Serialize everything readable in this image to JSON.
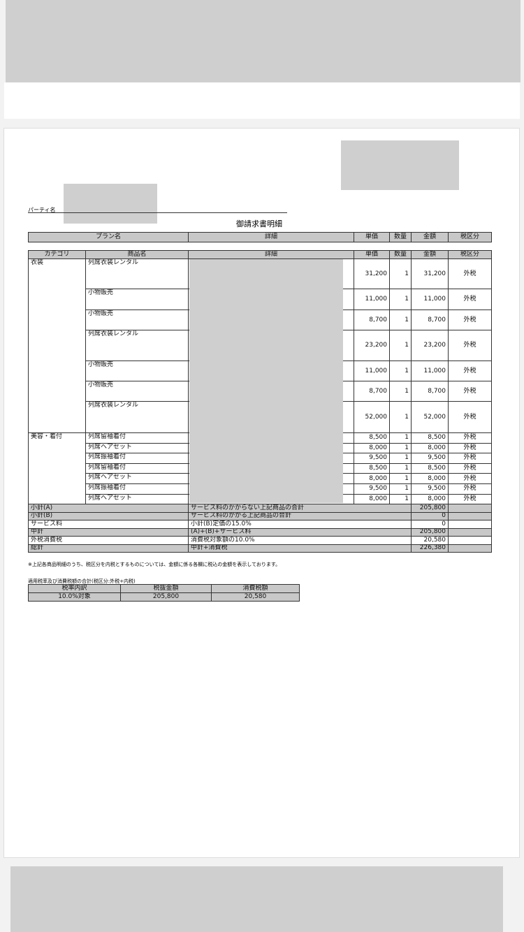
{
  "party_label": "パーティ名",
  "title": "御請求書明細",
  "plan_header": [
    "プラン名",
    "詳細",
    "単価",
    "数量",
    "金額",
    "税区分"
  ],
  "items_header": [
    "カテゴリ",
    "商品名",
    "詳細",
    "単価",
    "数量",
    "金額",
    "税区分"
  ],
  "groups": [
    {
      "category": "衣装",
      "rows": [
        {
          "name": "列席衣装レンタル",
          "unit_price": "31,200",
          "qty": "1",
          "amount": "31,200",
          "tax": "外税"
        },
        {
          "name": "小物販売",
          "unit_price": "11,000",
          "qty": "1",
          "amount": "11,000",
          "tax": "外税"
        },
        {
          "name": "小物販売",
          "unit_price": "8,700",
          "qty": "1",
          "amount": "8,700",
          "tax": "外税"
        },
        {
          "name": "列席衣装レンタル",
          "unit_price": "23,200",
          "qty": "1",
          "amount": "23,200",
          "tax": "外税"
        },
        {
          "name": "小物販売",
          "unit_price": "11,000",
          "qty": "1",
          "amount": "11,000",
          "tax": "外税"
        },
        {
          "name": "小物販売",
          "unit_price": "8,700",
          "qty": "1",
          "amount": "8,700",
          "tax": "外税"
        },
        {
          "name": "列席衣装レンタル",
          "unit_price": "52,000",
          "qty": "1",
          "amount": "52,000",
          "tax": "外税"
        }
      ]
    },
    {
      "category": "美容・着付",
      "rows": [
        {
          "name": "列席留袖着付",
          "unit_price": "8,500",
          "qty": "1",
          "amount": "8,500",
          "tax": "外税"
        },
        {
          "name": "列席ヘアセット",
          "unit_price": "8,000",
          "qty": "1",
          "amount": "8,000",
          "tax": "外税"
        },
        {
          "name": "列席振袖着付",
          "unit_price": "9,500",
          "qty": "1",
          "amount": "9,500",
          "tax": "外税"
        },
        {
          "name": "列席留袖着付",
          "unit_price": "8,500",
          "qty": "1",
          "amount": "8,500",
          "tax": "外税"
        },
        {
          "name": "列席ヘアセット",
          "unit_price": "8,000",
          "qty": "1",
          "amount": "8,000",
          "tax": "外税"
        },
        {
          "name": "列席振袖着付",
          "unit_price": "9,500",
          "qty": "1",
          "amount": "9,500",
          "tax": "外税"
        },
        {
          "name": "列席ヘアセット",
          "unit_price": "8,000",
          "qty": "1",
          "amount": "8,000",
          "tax": "外税"
        }
      ]
    }
  ],
  "summary": [
    {
      "label": "小計(A)",
      "description": "サービス料のかからない上記商品の合計",
      "amount": "205,800"
    },
    {
      "label": "小計(B)",
      "description": "サービス料のかかる上記商品の合計",
      "amount": "0"
    },
    {
      "label": "サービス料",
      "description": "小計(B)定価の15.0%",
      "amount": "0"
    },
    {
      "label": "中計",
      "description": "(A)+(B)+サービス料",
      "amount": "205,800"
    },
    {
      "label": "外税消費税",
      "description": "消費税対象額の10.0%",
      "amount": "20,580"
    },
    {
      "label": "総計",
      "description": "中計+消費税",
      "amount": "226,380"
    }
  ],
  "note": "※上記各商品明細のうち、税区分を内税とするものについては、金額に係る各欄に税込の金額を表示しております。",
  "tax_table": {
    "title": "適用税率及び消費税額の合計(税区分:外税+内税)",
    "header": [
      "税率内訳",
      "税抜金額",
      "消費税額"
    ],
    "rows": [
      [
        "10.0%対象",
        "205,800",
        "20,580"
      ]
    ]
  }
}
